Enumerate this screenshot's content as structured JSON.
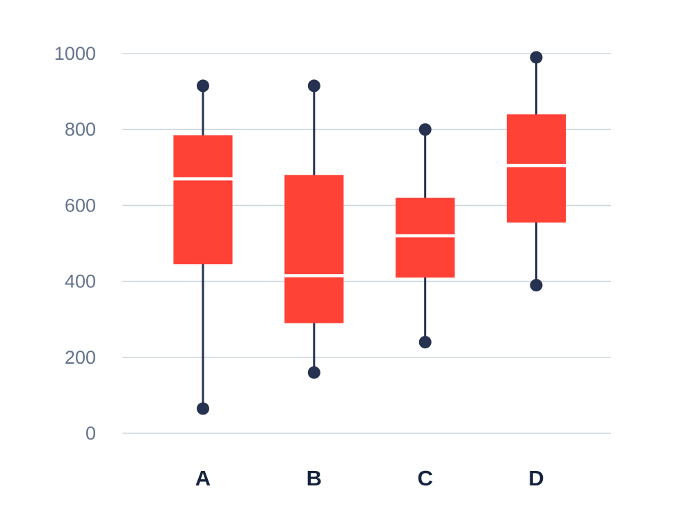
{
  "chart_data": {
    "type": "box",
    "title": "",
    "xlabel": "",
    "ylabel": "",
    "categories": [
      "A",
      "B",
      "C",
      "D"
    ],
    "series": [
      {
        "category": "A",
        "min": 65,
        "q1": 445,
        "median": 670,
        "q3": 785,
        "max": 915
      },
      {
        "category": "B",
        "min": 160,
        "q1": 290,
        "median": 415,
        "q3": 680,
        "max": 915
      },
      {
        "category": "C",
        "min": 240,
        "q1": 410,
        "median": 520,
        "q3": 620,
        "max": 800
      },
      {
        "category": "D",
        "min": 390,
        "q1": 555,
        "median": 705,
        "q3": 840,
        "max": 990
      }
    ],
    "ylim": [
      0,
      1000
    ],
    "yticks": [
      0,
      200,
      400,
      600,
      800,
      1000
    ],
    "grid": true,
    "legend": false,
    "colors": {
      "box_fill": "#ff4136",
      "median_line": "#ffffff",
      "whisker": "#263250",
      "gridline": "#cdd7de",
      "tick_label": "#64748b",
      "category_label": "#16233c",
      "background": "#ffffff"
    }
  }
}
